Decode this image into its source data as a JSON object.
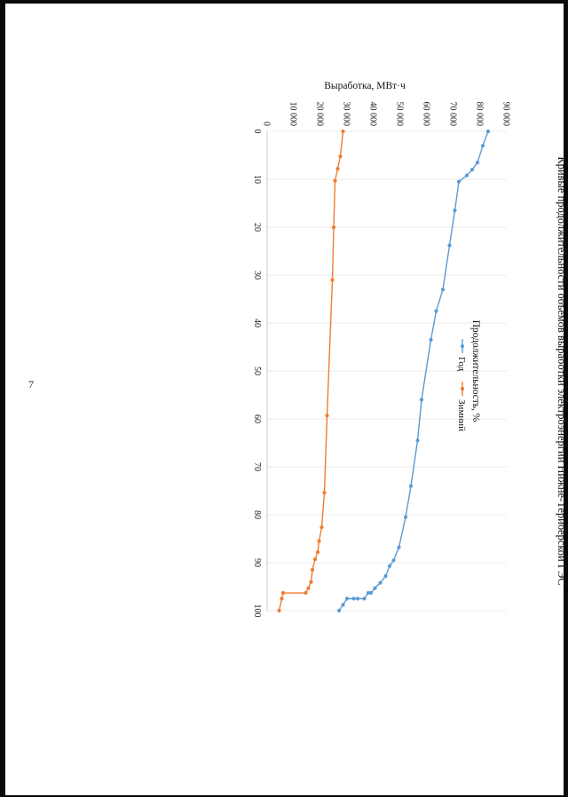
{
  "page": {
    "number": "7"
  },
  "chart_data": {
    "type": "line",
    "title": "Кривые продолжительности объемов выработки электроэнергии Нижне-Териберской ГЭС",
    "xlabel": "Продолжительность, %",
    "ylabel": "Выработка, МВт·ч",
    "xlim": [
      0,
      100
    ],
    "ylim": [
      0,
      90000
    ],
    "x_ticks": [
      0,
      10,
      20,
      30,
      40,
      50,
      60,
      70,
      80,
      90,
      100
    ],
    "y_ticks": [
      0,
      10000,
      20000,
      30000,
      40000,
      50000,
      60000,
      70000,
      80000,
      90000
    ],
    "x_tick_labels": [
      "0",
      "10",
      "20",
      "30",
      "40",
      "50",
      "60",
      "70",
      "80",
      "90",
      "100"
    ],
    "y_tick_labels": [
      "0",
      "10 000",
      "20 000",
      "30 000",
      "40 000",
      "50 000",
      "60 000",
      "70 000",
      "80 000",
      "90 000"
    ],
    "grid": "vertical",
    "legend_position": "bottom",
    "series": [
      {
        "name": "Год",
        "color": "#5b9bd5",
        "marker": "circle",
        "points": [
          [
            0.0,
            83000
          ],
          [
            3.0,
            81000
          ],
          [
            6.5,
            79000
          ],
          [
            8.0,
            77000
          ],
          [
            9.2,
            75000
          ],
          [
            10.5,
            72000
          ],
          [
            16.5,
            70500
          ],
          [
            23.8,
            68500
          ],
          [
            33.0,
            66000
          ],
          [
            37.5,
            63500
          ],
          [
            43.5,
            61500
          ],
          [
            56.0,
            58000
          ],
          [
            64.5,
            56500
          ],
          [
            74.0,
            54000
          ],
          [
            80.5,
            52000
          ],
          [
            86.8,
            49500
          ],
          [
            89.5,
            47500
          ],
          [
            90.7,
            46000
          ],
          [
            92.8,
            44500
          ],
          [
            94.2,
            42500
          ],
          [
            95.3,
            40500
          ],
          [
            96.3,
            39000
          ],
          [
            96.3,
            38000
          ],
          [
            97.5,
            36500
          ],
          [
            97.5,
            34000
          ],
          [
            97.5,
            32500
          ],
          [
            97.5,
            30000
          ],
          [
            98.8,
            28500
          ],
          [
            100.0,
            27000
          ]
        ]
      },
      {
        "name": "Зимний",
        "color": "#ed7d31",
        "marker": "circle",
        "points": [
          [
            0.0,
            28500
          ],
          [
            5.2,
            27500
          ],
          [
            7.8,
            26500
          ],
          [
            10.3,
            25500
          ],
          [
            20.0,
            25000
          ],
          [
            31.0,
            24500
          ],
          [
            59.3,
            22500
          ],
          [
            75.4,
            21500
          ],
          [
            82.6,
            20500
          ],
          [
            85.5,
            19500
          ],
          [
            87.8,
            19000
          ],
          [
            89.3,
            18000
          ],
          [
            91.5,
            17000
          ],
          [
            94.0,
            16500
          ],
          [
            95.3,
            15500
          ],
          [
            96.3,
            14500
          ],
          [
            96.3,
            6000
          ],
          [
            97.5,
            5500
          ],
          [
            100.0,
            4500
          ]
        ]
      }
    ]
  }
}
